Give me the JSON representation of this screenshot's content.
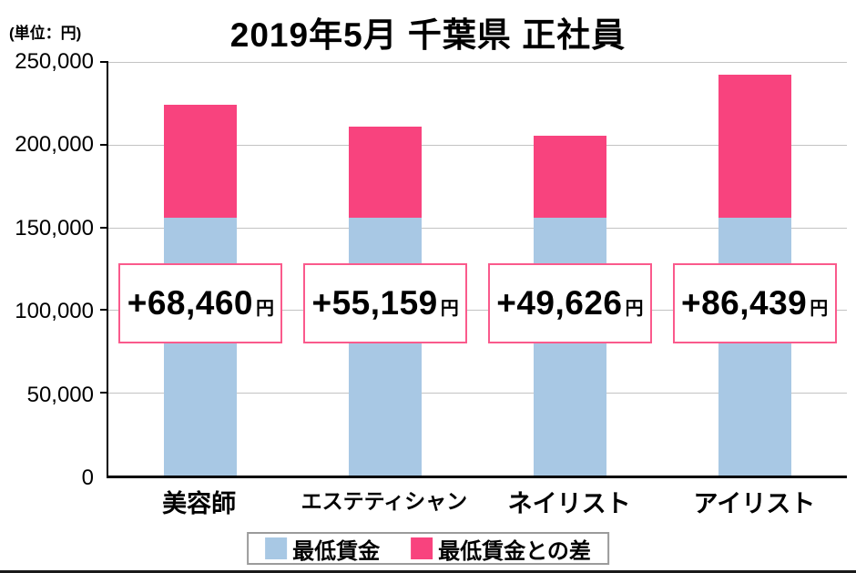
{
  "unit_label": "(単位：円)",
  "title": "2019年5月 千葉県 正社員",
  "chart_data": {
    "type": "bar",
    "stacked": true,
    "title": "2019年5月 千葉県 正社員",
    "unit": "円",
    "categories": [
      "美容師",
      "エステティシャン",
      "ネイリスト",
      "アイリスト"
    ],
    "series": [
      {
        "name": "最低賃金",
        "color": "#a8c8e4",
        "values": [
          155730,
          155730,
          155730,
          155730
        ]
      },
      {
        "name": "最低賃金との差",
        "color": "#f8437e",
        "values": [
          68460,
          55159,
          49626,
          86439
        ]
      }
    ],
    "totals": [
      224190,
      210889,
      205356,
      242169
    ],
    "diff_labels": [
      "+68,460",
      "+55,159",
      "+49,626",
      "+86,439"
    ],
    "diff_suffix": "円",
    "ylim": [
      0,
      250000
    ],
    "ytick_step": 50000,
    "yticks": [
      "250,000",
      "200,000",
      "150,000",
      "100,000",
      "50,000",
      "0"
    ],
    "grid": true,
    "legend_position": "bottom"
  },
  "colors": {
    "min_wage_blue": "#a8c8e4",
    "diff_pink": "#f8437e",
    "diff_box_border": "#fa5a8c",
    "gridline": "#c3c3c3",
    "axis": "#000000"
  }
}
